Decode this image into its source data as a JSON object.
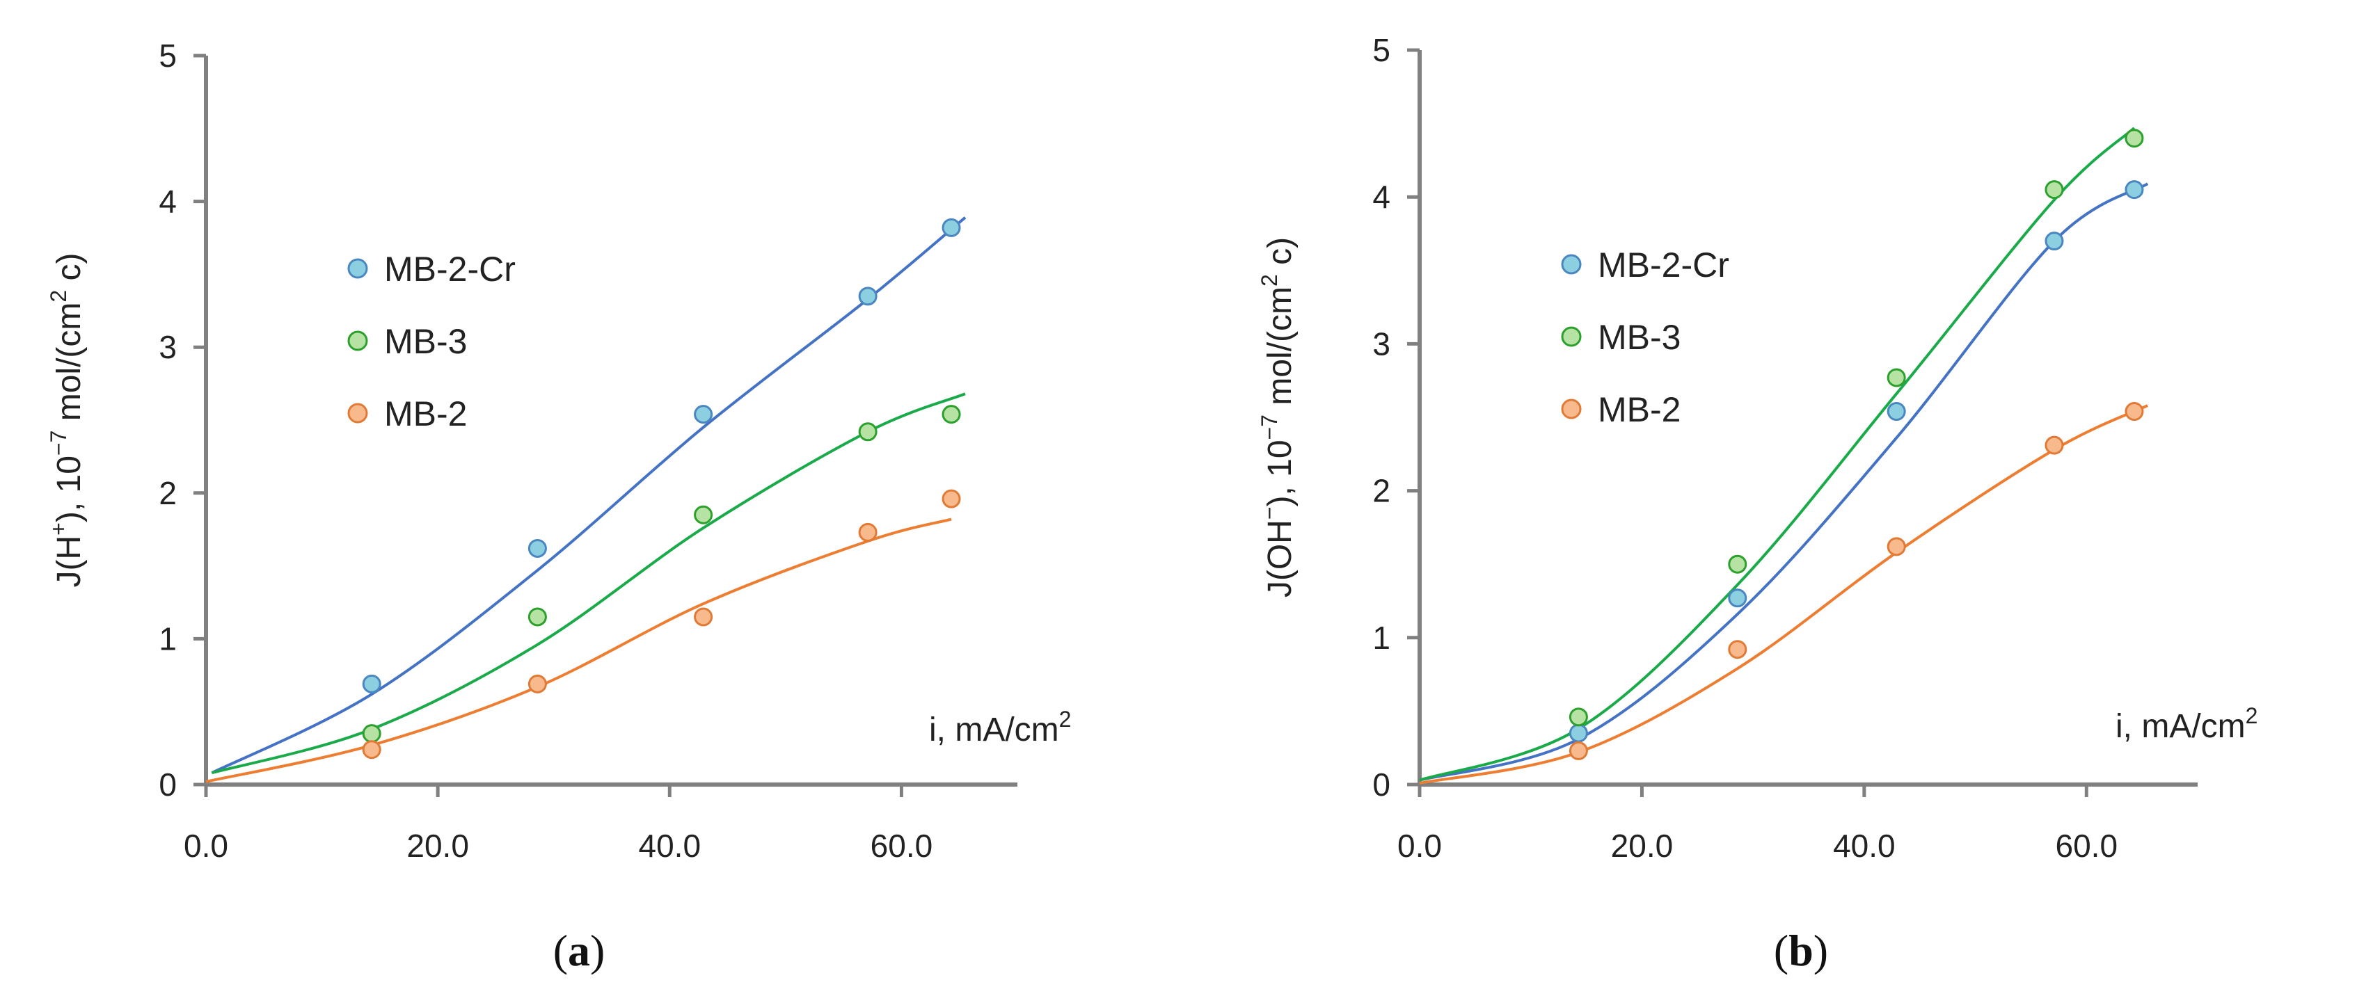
{
  "colors": {
    "MB-2-Cr": {
      "fill": "#8ccfe0",
      "stroke": "#4a86c0",
      "line": "#4472c4"
    },
    "MB-3": {
      "fill": "#b6e3a3",
      "stroke": "#2ca02c",
      "line": "#1aaa4a"
    },
    "MB-2": {
      "fill": "#f8b98c",
      "stroke": "#e07a35",
      "line": "#ed7d31"
    },
    "axis": "#808080"
  },
  "chart_data": [
    {
      "type": "scatter",
      "panel": "a",
      "caption_letter": "a",
      "xlabel": "i, mA/cm",
      "xlabel_sup": "2",
      "ylabel_pre": "J(H",
      "ylabel_sup1": "+",
      "ylabel_mid": "), 10",
      "ylabel_sup2": "−7",
      "ylabel_mid2": " mol/(cm",
      "ylabel_sup3": "2",
      "ylabel_post": " c)",
      "xlim": [
        0,
        70
      ],
      "ylim": [
        0,
        5
      ],
      "xticks": [
        "0.0",
        "20.0",
        "40.0",
        "60.0"
      ],
      "yticks": [
        "0",
        "1",
        "2",
        "3",
        "4",
        "5"
      ],
      "legend": [
        "MB-2-Cr",
        "MB-3",
        "MB-2"
      ],
      "series": [
        {
          "name": "MB-2-Cr",
          "x": [
            14.3,
            28.6,
            42.9,
            57.1,
            64.3
          ],
          "y": [
            0.69,
            1.62,
            2.54,
            3.35,
            3.82
          ],
          "fit": [
            [
              0.5,
              0.08
            ],
            [
              14.3,
              0.62
            ],
            [
              28.6,
              1.47
            ],
            [
              42.9,
              2.45
            ],
            [
              57.1,
              3.33
            ],
            [
              65.5,
              3.89
            ]
          ]
        },
        {
          "name": "MB-3",
          "x": [
            14.3,
            28.6,
            42.9,
            57.1,
            64.3
          ],
          "y": [
            0.35,
            1.15,
            1.85,
            2.42,
            2.54
          ],
          "fit": [
            [
              0.5,
              0.08
            ],
            [
              14.3,
              0.38
            ],
            [
              28.6,
              0.96
            ],
            [
              42.9,
              1.76
            ],
            [
              57.1,
              2.42
            ],
            [
              65.5,
              2.68
            ]
          ]
        },
        {
          "name": "MB-2",
          "x": [
            14.3,
            28.6,
            42.9,
            57.1,
            64.3
          ],
          "y": [
            0.24,
            0.69,
            1.15,
            1.73,
            1.96
          ],
          "fit": [
            [
              0,
              0.02
            ],
            [
              14.3,
              0.27
            ],
            [
              28.6,
              0.67
            ],
            [
              42.9,
              1.24
            ],
            [
              57.1,
              1.67
            ],
            [
              64.3,
              1.82
            ]
          ]
        }
      ]
    },
    {
      "type": "scatter",
      "panel": "b",
      "caption_letter": "b",
      "xlabel": "i, mA/cm",
      "xlabel_sup": "2",
      "ylabel_pre": "J(OH",
      "ylabel_sup1": "−",
      "ylabel_mid": "), 10",
      "ylabel_sup2": "−7",
      "ylabel_mid2": " mol/(cm",
      "ylabel_sup3": "2",
      "ylabel_post": " c)",
      "xlim": [
        0,
        70
      ],
      "ylim": [
        0,
        5
      ],
      "xticks": [
        "0.0",
        "20.0",
        "40.0",
        "60.0"
      ],
      "yticks": [
        "0",
        "1",
        "2",
        "3",
        "4",
        "5"
      ],
      "legend": [
        "MB-2-Cr",
        "MB-3",
        "MB-2"
      ],
      "series": [
        {
          "name": "MB-2-Cr",
          "x": [
            14.3,
            28.6,
            42.9,
            57.1,
            64.3
          ],
          "y": [
            0.35,
            1.27,
            2.54,
            3.7,
            4.05
          ],
          "fit": [
            [
              0,
              0.03
            ],
            [
              14.3,
              0.31
            ],
            [
              28.6,
              1.16
            ],
            [
              42.9,
              2.36
            ],
            [
              57.1,
              3.7
            ],
            [
              65.5,
              4.09
            ]
          ]
        },
        {
          "name": "MB-3",
          "x": [
            14.3,
            28.6,
            42.9,
            57.1,
            64.3
          ],
          "y": [
            0.46,
            1.5,
            2.77,
            4.05,
            4.4
          ],
          "fit": [
            [
              0,
              0.03
            ],
            [
              14.3,
              0.38
            ],
            [
              28.6,
              1.36
            ],
            [
              42.9,
              2.66
            ],
            [
              57.1,
              3.98
            ],
            [
              64.3,
              4.47
            ]
          ]
        },
        {
          "name": "MB-2",
          "x": [
            14.3,
            28.6,
            42.9,
            57.1,
            64.3
          ],
          "y": [
            0.23,
            0.92,
            1.62,
            2.31,
            2.54
          ],
          "fit": [
            [
              0,
              0.01
            ],
            [
              14.3,
              0.22
            ],
            [
              28.6,
              0.79
            ],
            [
              42.9,
              1.58
            ],
            [
              57.1,
              2.28
            ],
            [
              65.5,
              2.58
            ]
          ]
        }
      ]
    }
  ]
}
